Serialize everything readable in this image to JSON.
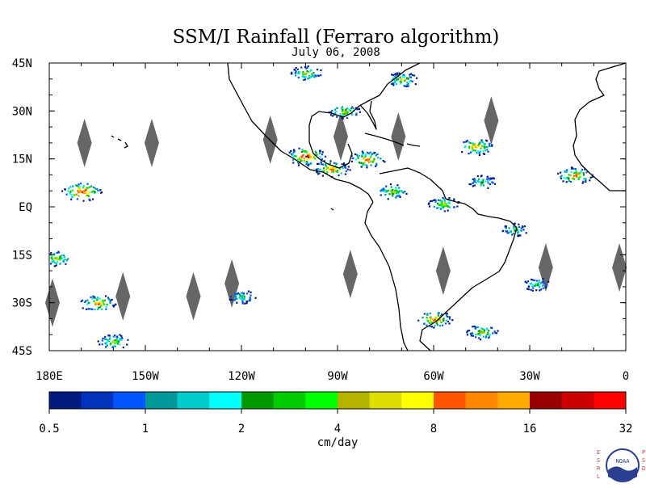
{
  "chart_data": {
    "type": "heatmap",
    "title": "SSM/I Rainfall (Ferraro algorithm)",
    "subtitle": "July 06, 2008",
    "projection": "cylindrical-equidistant",
    "xlim": [
      -180,
      0
    ],
    "ylim": [
      -45,
      45
    ],
    "x_ticks": [
      {
        "value": -180,
        "label": "180E"
      },
      {
        "value": -150,
        "label": "150W"
      },
      {
        "value": -120,
        "label": "120W"
      },
      {
        "value": -90,
        "label": "90W"
      },
      {
        "value": -60,
        "label": "60W"
      },
      {
        "value": -30,
        "label": "30W"
      },
      {
        "value": 0,
        "label": "0"
      }
    ],
    "y_ticks": [
      {
        "value": 45,
        "label": "45N"
      },
      {
        "value": 30,
        "label": "30N"
      },
      {
        "value": 15,
        "label": "15N"
      },
      {
        "value": 0,
        "label": "EQ"
      },
      {
        "value": -15,
        "label": "15S"
      },
      {
        "value": -30,
        "label": "30S"
      },
      {
        "value": -45,
        "label": "45S"
      }
    ],
    "colorbar": {
      "label": "cm/day",
      "tick_values": [
        0.5,
        1,
        2,
        4,
        8,
        16,
        32
      ],
      "tick_labels": [
        "0.5",
        "1",
        "2",
        "4",
        "8",
        "16",
        "32"
      ],
      "colors": [
        "#001a80",
        "#0033bb",
        "#0055ff",
        "#009999",
        "#00cccc",
        "#00ffff",
        "#009900",
        "#00cc00",
        "#00ff00",
        "#b3b300",
        "#dddd00",
        "#ffff00",
        "#ff5500",
        "#ff8800",
        "#ffaa00",
        "#990000",
        "#cc0000",
        "#ff0000"
      ]
    },
    "no_data_color": "#666666",
    "swath_gaps": [
      {
        "lon": -169,
        "lat": 20
      },
      {
        "lon": -148,
        "lat": 20
      },
      {
        "lon": -111,
        "lat": 21
      },
      {
        "lon": -89,
        "lat": 22
      },
      {
        "lon": -71,
        "lat": 22
      },
      {
        "lon": -42,
        "lat": 27
      },
      {
        "lon": -123,
        "lat": -24
      },
      {
        "lon": -86,
        "lat": -21
      },
      {
        "lon": -57,
        "lat": -20
      },
      {
        "lon": -25,
        "lat": -19
      },
      {
        "lon": -2,
        "lat": -19
      },
      {
        "lon": -157,
        "lat": -28
      },
      {
        "lon": -135,
        "lat": -28
      },
      {
        "lon": -179,
        "lat": -30
      }
    ],
    "rain_regions": [
      {
        "lon": -100,
        "lat": 16,
        "peak": "32"
      },
      {
        "lon": -92,
        "lat": 12,
        "peak": "16"
      },
      {
        "lon": -81,
        "lat": 15,
        "peak": "16"
      },
      {
        "lon": -170,
        "lat": 5,
        "peak": "32"
      },
      {
        "lon": -165,
        "lat": -30,
        "peak": "16"
      },
      {
        "lon": -160,
        "lat": -42,
        "peak": "8"
      },
      {
        "lon": -60,
        "lat": -35,
        "peak": "16"
      },
      {
        "lon": -47,
        "lat": 19,
        "peak": "16"
      },
      {
        "lon": -16,
        "lat": 10,
        "peak": "16"
      },
      {
        "lon": -57,
        "lat": 1,
        "peak": "8"
      },
      {
        "lon": -73,
        "lat": 5,
        "peak": "8"
      },
      {
        "lon": -70,
        "lat": 40,
        "peak": "8"
      },
      {
        "lon": -100,
        "lat": 42,
        "peak": "8"
      },
      {
        "lon": -88,
        "lat": 30,
        "peak": "8"
      },
      {
        "lon": -45,
        "lat": -39,
        "peak": "8"
      },
      {
        "lon": -178,
        "lat": -16,
        "peak": "8"
      },
      {
        "lon": -35,
        "lat": -7,
        "peak": "4"
      },
      {
        "lon": -45,
        "lat": 8,
        "peak": "4"
      },
      {
        "lon": -28,
        "lat": -24,
        "peak": "4"
      },
      {
        "lon": -120,
        "lat": -28,
        "peak": "4"
      }
    ]
  },
  "logo": {
    "left_text": "ESRL",
    "right_text": "PSD",
    "center_text": "NOAA"
  }
}
